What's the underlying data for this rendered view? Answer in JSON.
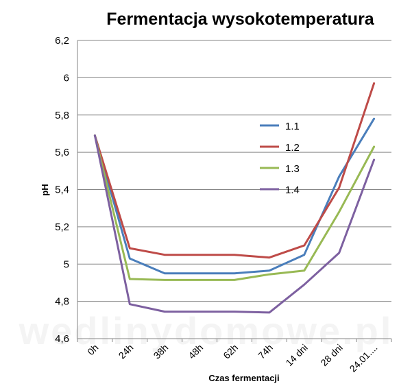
{
  "chart_data": {
    "type": "line",
    "title": "Fermentacja wysokotemperatura",
    "xlabel": "Czas fermentacji",
    "ylabel": "pH",
    "categories": [
      "0h",
      "24h",
      "38h",
      "48h",
      "62h",
      "74h",
      "14 dni",
      "28 dni",
      "24.01...."
    ],
    "ylim": [
      4.6,
      6.2
    ],
    "yticks": [
      "4,6",
      "4,8",
      "5",
      "5,2",
      "5,4",
      "5,6",
      "5,8",
      "6",
      "6,2"
    ],
    "grid": true,
    "legend_position": "right",
    "series": [
      {
        "name": "1.1",
        "color": "#4a7ebb",
        "values": [
          5.69,
          5.03,
          4.95,
          4.95,
          4.95,
          4.965,
          5.05,
          5.47,
          5.78
        ]
      },
      {
        "name": "1.2",
        "color": "#be4b48",
        "values": [
          5.69,
          5.085,
          5.05,
          5.05,
          5.05,
          5.035,
          5.1,
          5.41,
          5.97
        ]
      },
      {
        "name": "1.3",
        "color": "#98b954",
        "values": [
          5.69,
          4.92,
          4.915,
          4.915,
          4.915,
          4.945,
          4.965,
          5.28,
          5.63
        ]
      },
      {
        "name": "1.4",
        "color": "#7d60a0",
        "values": [
          5.69,
          4.785,
          4.745,
          4.745,
          4.745,
          4.74,
          4.89,
          5.06,
          5.56
        ]
      }
    ]
  },
  "watermark": "wedlinydomowe.pl"
}
